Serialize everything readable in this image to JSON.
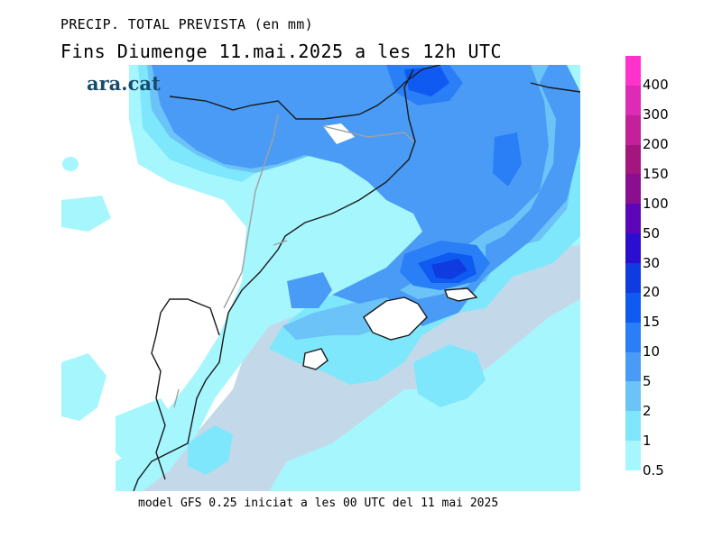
{
  "header": {
    "title": "PRECIP. TOTAL PREVISTA (en mm)",
    "subtitle": "Fins Diumenge 11.mai.2025 a les 12h UTC"
  },
  "logo": {
    "text": "ara.cat"
  },
  "footer": {
    "text": "model GFS 0.25 iniciat a les 00 UTC del 11 mai 2025"
  },
  "legend": {
    "labels": [
      "400",
      "300",
      "200",
      "150",
      "100",
      "50",
      "30",
      "20",
      "15",
      "10",
      "5",
      "2",
      "1",
      "0.5"
    ],
    "colors": [
      "#ff33cc",
      "#dd2bb5",
      "#c22199",
      "#a3157f",
      "#8a0e8f",
      "#5d05b8",
      "#2b0ed0",
      "#0f3be0",
      "#0f5af0",
      "#2a7ef6",
      "#4a9bf6",
      "#6bc3f8",
      "#7fe7fb",
      "#a6f6fd"
    ]
  },
  "map": {
    "colors": {
      "sea": "#c3d9e9",
      "land": "#ffffff",
      "c05": "#a6f6fd",
      "c1": "#7fe7fb",
      "c2": "#6bc3f8",
      "c5": "#4a9bf6",
      "c10": "#2a7ef6",
      "c15": "#0f5af0",
      "c20": "#0f3be0",
      "coast": "#1a1a1a",
      "border": "#a0a0a0"
    }
  }
}
